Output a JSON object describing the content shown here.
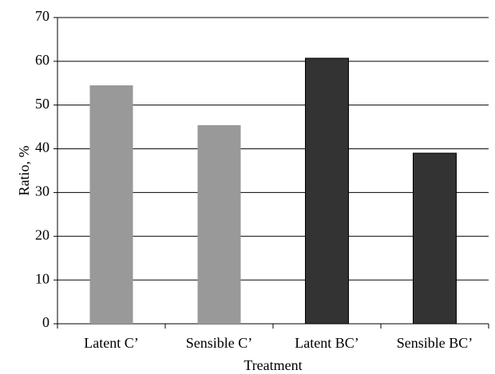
{
  "chart_data": {
    "type": "bar",
    "x_label": "Treatment",
    "y_label": "Ratio, %",
    "categories": [
      "Latent C’",
      "Sensible C’",
      "Latent BC’",
      "Sensible BC’"
    ],
    "values": [
      54.5,
      45.4,
      60.7,
      39.0
    ],
    "colors": [
      "#999999",
      "#999999",
      "#333333",
      "#333333"
    ],
    "ylim": [
      0,
      70
    ],
    "yticks": [
      0,
      10,
      20,
      30,
      40,
      50,
      60,
      70
    ],
    "grid": true
  }
}
